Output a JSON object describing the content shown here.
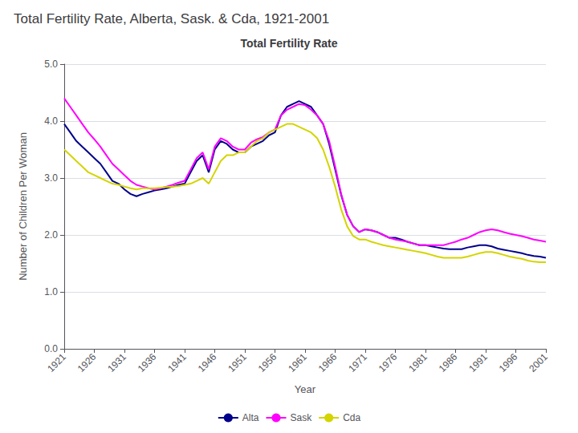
{
  "chart_data": {
    "type": "line",
    "title": "Total Fertility Rate, Alberta, Sask. & Cda, 1921-2001",
    "subtitle": "Total Fertility Rate",
    "xlabel": "Year",
    "ylabel": "Number of Children Per Woman",
    "x": [
      1921,
      1922,
      1923,
      1924,
      1925,
      1926,
      1927,
      1928,
      1929,
      1930,
      1931,
      1932,
      1933,
      1934,
      1935,
      1936,
      1937,
      1938,
      1939,
      1940,
      1941,
      1942,
      1943,
      1944,
      1945,
      1946,
      1947,
      1948,
      1949,
      1950,
      1951,
      1952,
      1953,
      1954,
      1955,
      1956,
      1957,
      1958,
      1959,
      1960,
      1961,
      1962,
      1963,
      1964,
      1965,
      1966,
      1967,
      1968,
      1969,
      1970,
      1971,
      1972,
      1973,
      1974,
      1975,
      1976,
      1977,
      1978,
      1979,
      1980,
      1981,
      1982,
      1983,
      1984,
      1985,
      1986,
      1987,
      1988,
      1989,
      1990,
      1991,
      1992,
      1993,
      1994,
      1995,
      1996,
      1997,
      1998,
      1999,
      2000,
      2001
    ],
    "series": [
      {
        "name": "Alta",
        "color": "#00008B",
        "values": [
          3.95,
          3.8,
          3.65,
          3.55,
          3.45,
          3.35,
          3.25,
          3.1,
          2.95,
          2.9,
          2.8,
          2.72,
          2.68,
          2.72,
          2.75,
          2.78,
          2.8,
          2.82,
          2.85,
          2.88,
          2.9,
          3.1,
          3.3,
          3.4,
          3.1,
          3.5,
          3.65,
          3.6,
          3.5,
          3.45,
          3.45,
          3.55,
          3.6,
          3.65,
          3.75,
          3.8,
          4.1,
          4.25,
          4.3,
          4.35,
          4.3,
          4.25,
          4.1,
          3.95,
          3.6,
          3.15,
          2.7,
          2.35,
          2.15,
          2.05,
          2.1,
          2.08,
          2.05,
          2.0,
          1.95,
          1.95,
          1.92,
          1.88,
          1.85,
          1.82,
          1.82,
          1.8,
          1.78,
          1.76,
          1.75,
          1.75,
          1.75,
          1.78,
          1.8,
          1.82,
          1.82,
          1.8,
          1.76,
          1.74,
          1.72,
          1.7,
          1.68,
          1.65,
          1.63,
          1.62,
          1.6
        ]
      },
      {
        "name": "Sask",
        "color": "#ff00ff",
        "values": [
          4.4,
          4.25,
          4.1,
          3.95,
          3.8,
          3.68,
          3.55,
          3.4,
          3.25,
          3.15,
          3.05,
          2.95,
          2.88,
          2.85,
          2.82,
          2.8,
          2.82,
          2.85,
          2.88,
          2.92,
          2.95,
          3.15,
          3.35,
          3.45,
          3.15,
          3.55,
          3.7,
          3.65,
          3.55,
          3.5,
          3.5,
          3.62,
          3.68,
          3.72,
          3.8,
          3.85,
          4.1,
          4.2,
          4.25,
          4.3,
          4.28,
          4.2,
          4.1,
          3.95,
          3.65,
          3.2,
          2.72,
          2.35,
          2.15,
          2.05,
          2.1,
          2.08,
          2.05,
          2.0,
          1.95,
          1.92,
          1.9,
          1.88,
          1.85,
          1.82,
          1.82,
          1.82,
          1.82,
          1.82,
          1.85,
          1.88,
          1.92,
          1.95,
          2.0,
          2.05,
          2.08,
          2.1,
          2.08,
          2.05,
          2.02,
          2.0,
          1.98,
          1.95,
          1.92,
          1.9,
          1.88
        ]
      },
      {
        "name": "Cda",
        "color": "#d4d400",
        "values": [
          3.5,
          3.4,
          3.3,
          3.2,
          3.1,
          3.05,
          3.0,
          2.95,
          2.9,
          2.88,
          2.85,
          2.82,
          2.8,
          2.82,
          2.82,
          2.82,
          2.83,
          2.84,
          2.85,
          2.86,
          2.88,
          2.9,
          2.95,
          3.0,
          2.9,
          3.1,
          3.3,
          3.4,
          3.4,
          3.45,
          3.45,
          3.55,
          3.65,
          3.7,
          3.8,
          3.85,
          3.9,
          3.95,
          3.95,
          3.9,
          3.85,
          3.8,
          3.7,
          3.5,
          3.2,
          2.85,
          2.45,
          2.15,
          1.98,
          1.92,
          1.92,
          1.88,
          1.85,
          1.82,
          1.8,
          1.78,
          1.76,
          1.74,
          1.72,
          1.7,
          1.68,
          1.65,
          1.62,
          1.6,
          1.6,
          1.6,
          1.6,
          1.62,
          1.65,
          1.68,
          1.7,
          1.7,
          1.68,
          1.65,
          1.62,
          1.6,
          1.58,
          1.55,
          1.53,
          1.52,
          1.52
        ]
      }
    ],
    "xlim": [
      1921,
      2001
    ],
    "xticks": [
      1921,
      1926,
      1931,
      1936,
      1941,
      1946,
      1951,
      1956,
      1961,
      1966,
      1971,
      1976,
      1981,
      1986,
      1991,
      1996,
      2001
    ],
    "ylim": [
      0.0,
      5.0
    ],
    "yticks": [
      {
        "value": 0,
        "label": "0.0"
      },
      {
        "value": 1,
        "label": "1.0"
      },
      {
        "value": 2,
        "label": "2.0"
      },
      {
        "value": 3,
        "label": "3.0"
      },
      {
        "value": 4,
        "label": "4.0"
      },
      {
        "value": 5,
        "label": "5.0"
      }
    ],
    "grid": true,
    "legend": "bottom"
  }
}
